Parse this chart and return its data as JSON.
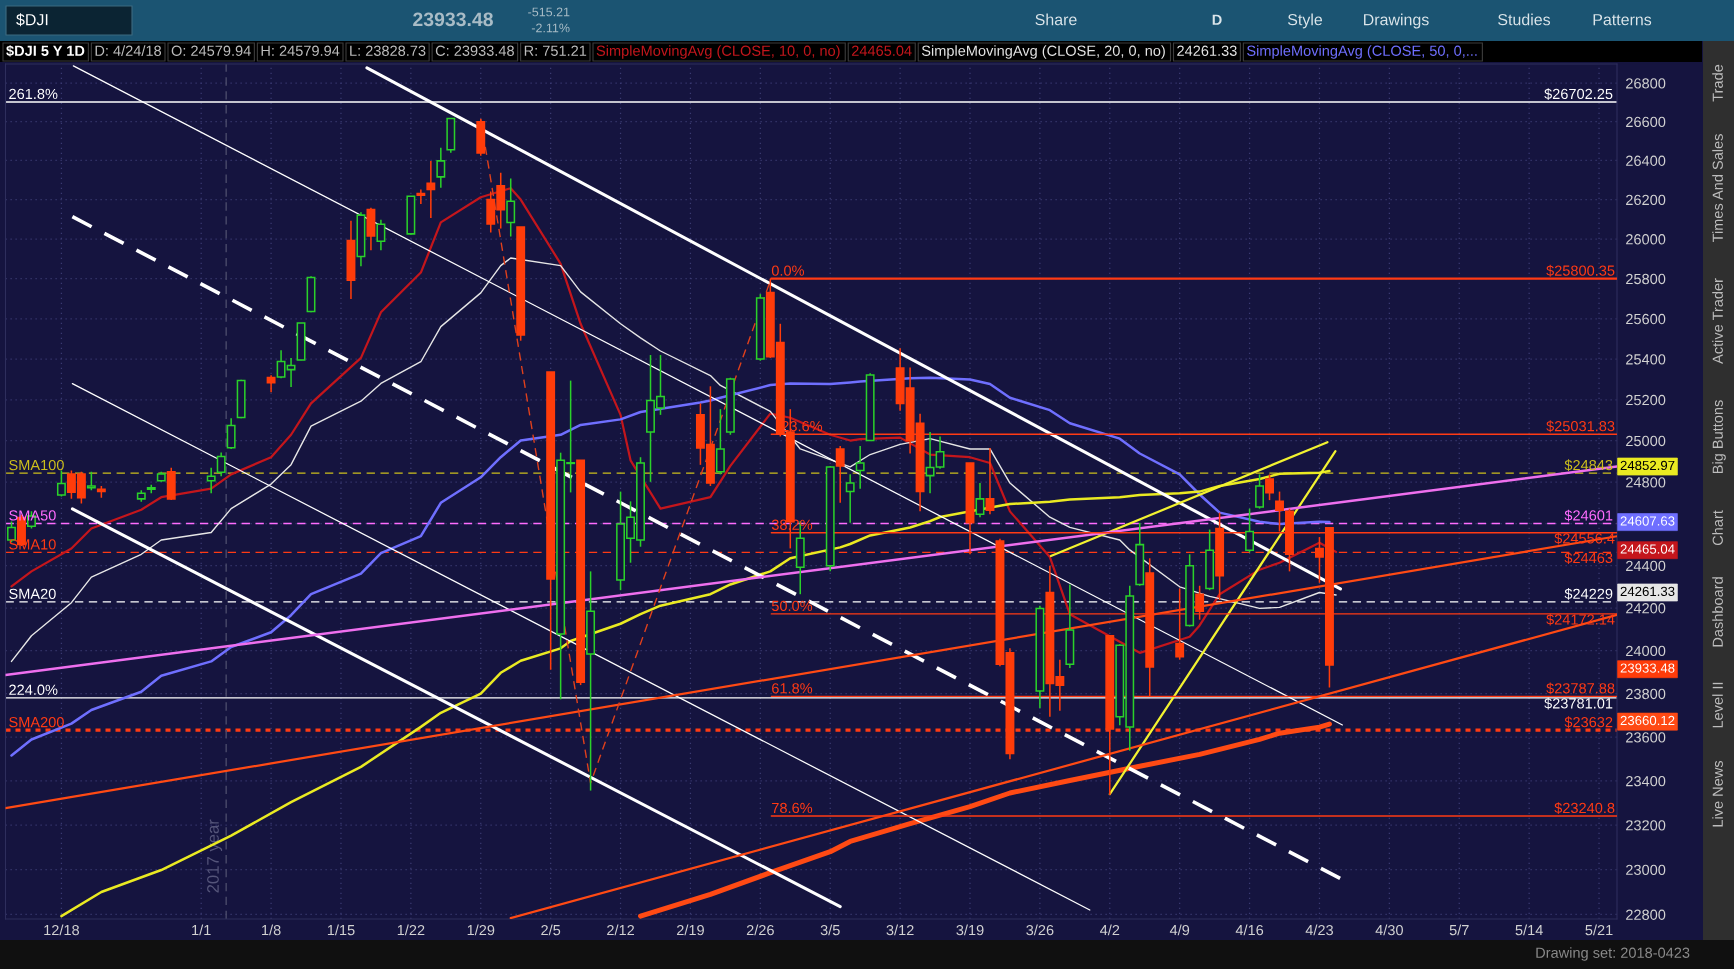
{
  "chart_data": {
    "type": "candlestick",
    "title": "$DJI 5 Y 1D",
    "x": [
      "2017-12-13",
      "2017-12-14",
      "2017-12-15",
      "2017-12-18",
      "2017-12-19",
      "2017-12-20",
      "2017-12-21",
      "2017-12-22",
      "2017-12-26",
      "2017-12-27",
      "2017-12-28",
      "2017-12-29",
      "2018-01-02",
      "2018-01-03",
      "2018-01-04",
      "2018-01-05",
      "2018-01-08",
      "2018-01-09",
      "2018-01-10",
      "2018-01-11",
      "2018-01-12",
      "2018-01-16",
      "2018-01-17",
      "2018-01-18",
      "2018-01-19",
      "2018-01-22",
      "2018-01-23",
      "2018-01-24",
      "2018-01-25",
      "2018-01-26",
      "2018-01-29",
      "2018-01-30",
      "2018-01-31",
      "2018-02-01",
      "2018-02-02",
      "2018-02-05",
      "2018-02-06",
      "2018-02-07",
      "2018-02-08",
      "2018-02-09",
      "2018-02-12",
      "2018-02-13",
      "2018-02-14",
      "2018-02-15",
      "2018-02-16",
      "2018-02-20",
      "2018-02-21",
      "2018-02-22",
      "2018-02-23",
      "2018-02-26",
      "2018-02-27",
      "2018-02-28",
      "2018-03-01",
      "2018-03-02",
      "2018-03-05",
      "2018-03-06",
      "2018-03-07",
      "2018-03-08",
      "2018-03-09",
      "2018-03-12",
      "2018-03-13",
      "2018-03-14",
      "2018-03-15",
      "2018-03-16",
      "2018-03-19",
      "2018-03-20",
      "2018-03-21",
      "2018-03-22",
      "2018-03-23",
      "2018-03-26",
      "2018-03-27",
      "2018-03-28",
      "2018-03-29",
      "2018-04-02",
      "2018-04-03",
      "2018-04-04",
      "2018-04-05",
      "2018-04-06",
      "2018-04-09",
      "2018-04-10",
      "2018-04-11",
      "2018-04-12",
      "2018-04-13",
      "2018-04-16",
      "2018-04-17",
      "2018-04-18",
      "2018-04-19",
      "2018-04-20",
      "2018-04-23",
      "2018-04-24"
    ],
    "ohlc": [
      [
        24522,
        24610,
        24511,
        24582
      ],
      [
        24629,
        24643,
        24493,
        24501
      ],
      [
        24588,
        24659,
        24577,
        24637
      ],
      [
        24738,
        24856,
        24730,
        24793
      ],
      [
        24839,
        24856,
        24719,
        24751
      ],
      [
        24839,
        24850,
        24697,
        24724
      ],
      [
        24773,
        24850,
        24760,
        24781
      ],
      [
        24765,
        24781,
        24724,
        24754
      ],
      [
        24719,
        24760,
        24705,
        24746
      ],
      [
        24765,
        24787,
        24746,
        24773
      ],
      [
        24806,
        24850,
        24801,
        24839
      ],
      [
        24850,
        24869,
        24713,
        24719
      ],
      [
        24806,
        24869,
        24746,
        24828
      ],
      [
        24847,
        24943,
        24828,
        24924
      ],
      [
        24966,
        25110,
        24960,
        25074
      ],
      [
        25113,
        25298,
        25110,
        25295
      ],
      [
        25309,
        25320,
        25237,
        25284
      ],
      [
        25312,
        25444,
        25306,
        25388
      ],
      [
        25348,
        25405,
        25262,
        25368
      ],
      [
        25396,
        25579,
        25394,
        25579
      ],
      [
        25636,
        25812,
        25633,
        25806
      ],
      [
        25992,
        26093,
        25698,
        25792
      ],
      [
        25912,
        26136,
        25863,
        26121
      ],
      [
        26150,
        26159,
        25943,
        26015
      ],
      [
        25989,
        26098,
        25943,
        26075
      ],
      [
        26026,
        26217,
        26021,
        26217
      ],
      [
        26231,
        26252,
        26178,
        26222
      ],
      [
        26284,
        26398,
        26107,
        26252
      ],
      [
        26316,
        26465,
        26261,
        26398
      ],
      [
        26455,
        26616,
        26440,
        26616
      ],
      [
        26600,
        26615,
        26424,
        26439
      ],
      [
        26200,
        26241,
        26033,
        26076
      ],
      [
        26270,
        26337,
        26053,
        26148
      ],
      [
        26084,
        26308,
        26013,
        26192
      ],
      [
        26061,
        26061,
        25491,
        25519
      ],
      [
        25336,
        25336,
        23911,
        24337
      ],
      [
        24078,
        24942,
        23774,
        24905
      ],
      [
        24890,
        25294,
        24750,
        24893
      ],
      [
        24905,
        24905,
        23840,
        23853
      ],
      [
        23985,
        24373,
        23356,
        24185
      ],
      [
        24332,
        24754,
        24284,
        24599
      ],
      [
        24530,
        24707,
        24414,
        24631
      ],
      [
        24522,
        24920,
        24490,
        24892
      ],
      [
        25043,
        25420,
        24801,
        25196
      ],
      [
        25160,
        25420,
        25126,
        25216
      ],
      [
        25126,
        25182,
        24883,
        24965
      ],
      [
        24982,
        25266,
        24781,
        24795
      ],
      [
        24850,
        25154,
        24837,
        24960
      ],
      [
        25043,
        25308,
        25029,
        25302
      ],
      [
        25400,
        25723,
        25392,
        25703
      ],
      [
        25731,
        25800.35,
        25406,
        25412
      ],
      [
        25482,
        25575,
        25021,
        25035
      ],
      [
        25043,
        25154,
        24482,
        24609
      ],
      [
        24392,
        24612,
        24265,
        24530
      ],
      [
        24400,
        24878,
        24373,
        24873
      ],
      [
        24960,
        24974,
        24700,
        24878
      ],
      [
        24754,
        24837,
        24604,
        24795
      ],
      [
        24856,
        24974,
        24768,
        24892
      ],
      [
        25001,
        25330,
        25001,
        25322
      ],
      [
        25356,
        25453,
        25146,
        25182
      ],
      [
        25257,
        25359,
        24938,
        25001
      ],
      [
        25085,
        25132,
        24659,
        24754
      ],
      [
        24831,
        25043,
        24746,
        24870
      ],
      [
        24873,
        25021,
        24864,
        24947
      ],
      [
        24892,
        24892,
        24454,
        24604
      ],
      [
        24645,
        24795,
        24631,
        24719
      ],
      [
        24719,
        24965,
        24645,
        24664
      ],
      [
        24517,
        24528,
        23927,
        23937
      ],
      [
        23990,
        24011,
        23499,
        23525
      ],
      [
        23813,
        24211,
        23734,
        24198
      ],
      [
        24273,
        24400,
        23694,
        23847
      ],
      [
        23879,
        23958,
        23721,
        23839
      ],
      [
        23937,
        24311,
        23919,
        24097
      ],
      [
        24070,
        24070,
        23336,
        23637
      ],
      [
        23694,
        24030,
        23655,
        24025
      ],
      [
        23647,
        24305,
        23538,
        24257
      ],
      [
        24311,
        24604,
        24305,
        24500
      ],
      [
        24365,
        24435,
        23787,
        23924
      ],
      [
        24033,
        24292,
        23958,
        23972
      ],
      [
        24118,
        24454,
        24113,
        24400
      ],
      [
        24265,
        24305,
        24145,
        24185
      ],
      [
        24292,
        24572,
        24284,
        24473
      ],
      [
        24577,
        24653,
        24238,
        24352
      ],
      [
        24473,
        24672,
        24463,
        24563
      ],
      [
        24680,
        24837,
        24672,
        24781
      ],
      [
        24815,
        24837,
        24713,
        24749
      ],
      [
        24707,
        24754,
        24563,
        24664
      ],
      [
        24659,
        24672,
        24373,
        24454
      ],
      [
        24482,
        24536,
        24319,
        24441
      ],
      [
        24579.94,
        24579.94,
        23828.73,
        23933.48
      ]
    ],
    "colors": [
      "#2ad12a",
      "#ff3c0a",
      "#2ad12a",
      "#2ad12a",
      "#ff3c0a",
      "#ff3c0a",
      "#2ad12a",
      "#ff3c0a",
      "#2ad12a",
      "#2ad12a",
      "#2ad12a",
      "#ff3c0a",
      "#2ad12a",
      "#2ad12a",
      "#2ad12a",
      "#2ad12a",
      "#ff3c0a",
      "#2ad12a",
      "#2ad12a",
      "#2ad12a",
      "#2ad12a",
      "#ff3c0a",
      "#2ad12a",
      "#ff3c0a",
      "#2ad12a",
      "#2ad12a",
      "#ff3c0a",
      "#ff3c0a",
      "#2ad12a",
      "#2ad12a",
      "#ff3c0a",
      "#ff3c0a",
      "#ff3c0a",
      "#2ad12a",
      "#ff3c0a",
      "#ff3c0a",
      "#2ad12a",
      "#2ad12a",
      "#ff3c0a",
      "#2ad12a",
      "#2ad12a",
      "#2ad12a",
      "#2ad12a",
      "#2ad12a",
      "#2ad12a",
      "#ff3c0a",
      "#ff3c0a",
      "#2ad12a",
      "#2ad12a",
      "#2ad12a",
      "#ff3c0a",
      "#ff3c0a",
      "#ff3c0a",
      "#2ad12a",
      "#2ad12a",
      "#ff3c0a",
      "#2ad12a",
      "#2ad12a",
      "#2ad12a",
      "#ff3c0a",
      "#ff3c0a",
      "#ff3c0a",
      "#2ad12a",
      "#2ad12a",
      "#ff3c0a",
      "#2ad12a",
      "#ff3c0a",
      "#ff3c0a",
      "#ff3c0a",
      "#2ad12a",
      "#ff3c0a",
      "#ff3c0a",
      "#2ad12a",
      "#ff3c0a",
      "#2ad12a",
      "#2ad12a",
      "#2ad12a",
      "#ff3c0a",
      "#ff3c0a",
      "#2ad12a",
      "#ff3c0a",
      "#2ad12a",
      "#ff3c0a",
      "#2ad12a",
      "#2ad12a",
      "#ff3c0a",
      "#ff3c0a",
      "#ff3c0a",
      "#ff3c0a",
      "#ff3c0a"
    ],
    "series": [
      {
        "type": "line",
        "name": "SimpleMovingAvg (CLOSE, 10, 0, no)",
        "color": "#c4161c",
        "x": [
          "2017-12-13",
          "2017-12-15",
          "2017-12-19",
          "2017-12-21",
          "2017-12-26",
          "2017-12-28",
          "2018-01-02",
          "2018-01-04",
          "2018-01-08",
          "2018-01-10",
          "2018-01-12",
          "2018-01-17",
          "2018-01-19",
          "2018-01-23",
          "2018-01-25",
          "2018-01-29",
          "2018-02-01",
          "2018-02-02",
          "2018-02-06",
          "2018-02-08",
          "2018-02-12",
          "2018-02-13",
          "2018-02-16",
          "2018-02-21",
          "2018-02-23",
          "2018-02-27",
          "2018-03-01",
          "2018-03-05",
          "2018-03-07",
          "2018-03-08",
          "2018-03-12",
          "2018-03-15",
          "2018-03-19",
          "2018-03-21",
          "2018-03-23",
          "2018-03-27",
          "2018-03-29",
          "2018-04-05",
          "2018-04-10",
          "2018-04-11",
          "2018-04-13",
          "2018-04-17",
          "2018-04-19",
          "2018-04-23",
          "2018-04-24T16:00"
        ],
        "values": [
          24302,
          24373,
          24482,
          24577,
          24667,
          24727,
          24768,
          24837,
          24920,
          25029,
          25182,
          25406,
          25632,
          25831,
          26084,
          26212,
          26258,
          26200,
          25875,
          25575,
          25126,
          24905,
          24672,
          24727,
          24878,
          25132,
          25112,
          25029,
          25001,
          25008,
          25015,
          24933,
          24920,
          24892,
          24659,
          24441,
          24171,
          23990,
          24065,
          24118,
          24265,
          24381,
          24414,
          24509,
          24465.04
        ]
      },
      {
        "type": "line",
        "name": "SimpleMovingAvg (CLOSE, 20, 0, no)",
        "color": "#e6e6e6",
        "x": [
          "2017-12-13",
          "2017-12-15",
          "2017-12-19",
          "2017-12-21",
          "2017-12-26",
          "2017-12-28",
          "2018-01-02",
          "2018-01-04",
          "2018-01-08",
          "2018-01-10",
          "2018-01-12",
          "2018-01-17",
          "2018-01-19",
          "2018-01-23",
          "2018-01-25",
          "2018-01-29",
          "2018-01-31",
          "2018-02-01",
          "2018-02-06",
          "2018-02-08",
          "2018-02-12",
          "2018-02-14",
          "2018-02-16",
          "2018-02-21",
          "2018-02-22",
          "2018-02-27",
          "2018-03-02",
          "2018-03-07",
          "2018-03-09",
          "2018-03-12",
          "2018-03-15",
          "2018-03-19",
          "2018-03-21",
          "2018-03-23",
          "2018-03-27",
          "2018-03-29",
          "2018-04-03",
          "2018-04-04",
          "2018-04-09",
          "2018-04-12",
          "2018-04-13",
          "2018-04-17",
          "2018-04-19",
          "2018-04-23",
          "2018-04-24T16:00"
        ],
        "values": [
          23950,
          24070,
          24225,
          24346,
          24454,
          24522,
          24558,
          24672,
          24790,
          24884,
          25071,
          25193,
          25280,
          25387,
          25561,
          25729,
          25866,
          25904,
          25866,
          25734,
          25575,
          25505,
          25440,
          25319,
          25270,
          25143,
          24960,
          24873,
          24933,
          24982,
          25010,
          24960,
          24960,
          24795,
          24631,
          24582,
          24522,
          24475,
          24300,
          24255,
          24244,
          24198,
          24203,
          24273,
          24261.33
        ]
      },
      {
        "type": "line",
        "name": "SimpleMovingAvg (CLOSE, 50, 0,...",
        "color": "#6f6fff",
        "x": [
          "2017-12-13",
          "2017-12-15",
          "2017-12-19",
          "2017-12-21",
          "2017-12-26",
          "2017-12-28",
          "2018-01-02",
          "2018-01-04",
          "2018-01-08",
          "2018-01-10",
          "2018-01-12",
          "2018-01-17",
          "2018-01-19",
          "2018-01-23",
          "2018-01-25",
          "2018-01-29",
          "2018-01-31",
          "2018-02-02",
          "2018-02-06",
          "2018-02-08",
          "2018-02-12",
          "2018-02-14",
          "2018-02-20",
          "2018-02-21",
          "2018-02-22",
          "2018-02-27",
          "2018-03-01",
          "2018-03-05",
          "2018-03-07",
          "2018-03-08",
          "2018-03-13",
          "2018-03-15",
          "2018-03-19",
          "2018-03-21",
          "2018-03-23",
          "2018-03-27",
          "2018-03-29",
          "2018-04-03",
          "2018-04-05",
          "2018-04-09",
          "2018-04-11",
          "2018-04-13",
          "2018-04-17",
          "2018-04-19",
          "2018-04-23",
          "2018-04-24"
        ],
        "values": [
          23516,
          23589,
          23662,
          23725,
          23809,
          23883,
          23950,
          24017,
          24086,
          24166,
          24265,
          24362,
          24460,
          24541,
          24700,
          24823,
          24920,
          25001,
          25029,
          25077,
          25104,
          25140,
          25187,
          25196,
          25210,
          25272,
          25280,
          25277,
          25285,
          25290,
          25305,
          25308,
          25299,
          25277,
          25210,
          25149,
          25085,
          25010,
          24938,
          24837,
          24740,
          24653,
          24609,
          24598,
          24609,
          24607.63
        ]
      },
      {
        "type": "line",
        "color": "#eaea22",
        "x": [
          "2017-12-18",
          "2017-12-22",
          "2017-12-28",
          "2018-01-04",
          "2018-01-10",
          "2018-01-17",
          "2018-01-23",
          "2018-01-25",
          "2018-01-29",
          "2018-01-31",
          "2018-02-02",
          "2018-02-06",
          "2018-02-07",
          "2018-02-12",
          "2018-02-14",
          "2018-02-16",
          "2018-02-21",
          "2018-02-23",
          "2018-02-27",
          "2018-03-01",
          "2018-03-06",
          "2018-03-07",
          "2018-03-09",
          "2018-03-13",
          "2018-03-15",
          "2018-03-16",
          "2018-03-22",
          "2018-03-23",
          "2018-03-27",
          "2018-03-29",
          "2018-04-03",
          "2018-04-05",
          "2018-04-09",
          "2018-04-11",
          "2018-04-13",
          "2018-04-17",
          "2018-04-19",
          "2018-04-23",
          "2018-04-24"
        ],
        "values": [
          22793,
          22900,
          22998,
          23152,
          23304,
          23464,
          23647,
          23712,
          23800,
          23897,
          23953,
          24011,
          24045,
          24126,
          24171,
          24211,
          24265,
          24311,
          24373,
          24435,
          24487,
          24503,
          24544,
          24582,
          24612,
          24632,
          24686,
          24694,
          24705,
          24716,
          24727,
          24738,
          24746,
          24754,
          24781,
          24815,
          24840,
          24845,
          24852.97
        ]
      },
      {
        "type": "line",
        "color": "#ff4a14",
        "x": [
          "2018-02-14",
          "2018-02-21",
          "2018-02-27",
          "2018-03-05",
          "2018-03-07",
          "2018-03-13",
          "2018-03-19",
          "2018-03-23",
          "2018-03-29",
          "2018-04-05",
          "2018-04-11",
          "2018-04-17",
          "2018-04-19",
          "2018-04-23",
          "2018-04-24"
        ],
        "values": [
          22793,
          22889,
          22986,
          23080,
          23126,
          23206,
          23283,
          23345,
          23402,
          23467,
          23521,
          23590,
          23618,
          23646,
          23660.12
        ]
      },
      {
        "type": "line",
        "color": "#ffffff",
        "x": [
          "2018-01-17T14:24",
          "2018-04-25T02:24"
        ],
        "values": [
          26880,
          24290
        ]
      },
      {
        "type": "line",
        "color": "#ffffff",
        "x": [
          "2017-12-19T02:24",
          "2018-03-06"
        ],
        "values": [
          24671,
          22835
        ]
      },
      {
        "type": "line",
        "color": "#ffffff",
        "line_style": "dashed",
        "x": [
          "2017-12-19T02:24",
          "2018-04-25T02:24"
        ],
        "values": [
          26113,
          22960
        ]
      },
      {
        "type": "line",
        "color": "#ffffff",
        "x": [
          "2017-12-19T04:48",
          "2018-04-25T07:12"
        ],
        "values": [
          26890,
          23656
        ]
      },
      {
        "type": "line",
        "color": "#ffffff",
        "x": [
          "2017-12-19T02:24",
          "2018-03-31"
        ],
        "values": [
          25279,
          22820
        ]
      },
      {
        "type": "line",
        "color": "#f2f230",
        "x": [
          "2018-03-27T02:24",
          "2018-04-23T19:12"
        ],
        "values": [
          24446,
          24993
        ]
      },
      {
        "type": "line",
        "color": "#f2f230",
        "x": [
          "2018-04-02",
          "2018-04-24T14:24"
        ],
        "values": [
          23340,
          24949
        ]
      },
      {
        "type": "line",
        "color": "#ee6fee",
        "x": [
          "2017-12-12T09:36",
          "2018-05-22T19:12"
        ],
        "values": [
          23887,
          24875
        ]
      },
      {
        "type": "line",
        "color": "#ff4a14",
        "x": [
          "2017-12-12T09:36",
          "2018-05-22T19:12"
        ],
        "values": [
          23276,
          24540
        ]
      },
      {
        "type": "line",
        "color": "#ff4a14",
        "x": [
          "2018-02-01",
          "2018-05-22T19:12"
        ],
        "values": [
          22784,
          24168
        ]
      },
      {
        "type": "line",
        "color": "#e0401c",
        "line_style": "dashed",
        "x": [
          "2018-01-29",
          "2018-02-09",
          "2018-02-27"
        ],
        "values": [
          26612,
          23390,
          25790
        ]
      },
      {
        "type": "line",
        "color": "#ff3a14",
        "x": [
          "2018-02-27T02:24",
          "2018-05-22T19:12"
        ],
        "values": [
          25800.35,
          25800.35
        ]
      },
      {
        "type": "line",
        "color": "#ff3a14",
        "x": [
          "2018-02-27T02:24",
          "2018-05-22T19:12"
        ],
        "values": [
          25031.83,
          25031.83
        ]
      },
      {
        "type": "line",
        "color": "#ff3a14",
        "x": [
          "2018-02-27T02:24",
          "2018-05-22T19:12"
        ],
        "values": [
          24556.4,
          24556.4
        ]
      },
      {
        "type": "line",
        "color": "#ff3a14",
        "x": [
          "2018-02-27T02:24",
          "2018-05-22T19:12"
        ],
        "values": [
          24172.14,
          24172.14
        ]
      },
      {
        "type": "line",
        "color": "#ff3a14",
        "x": [
          "2018-02-27T02:24",
          "2018-05-22T19:12"
        ],
        "values": [
          23787.88,
          23787.88
        ]
      },
      {
        "type": "line",
        "color": "#ff3a14",
        "x": [
          "2018-02-27T02:24",
          "2018-05-22T19:12"
        ],
        "values": [
          23240.8,
          23240.8
        ]
      }
    ],
    "xlim": [
      "2017-12-12T09:36",
      "2018-05-22T19:12"
    ],
    "ylim": [
      22780,
      26900
    ],
    "log": "y",
    "xticks": [
      {
        "value": "2017-12-18",
        "label": "12/18"
      },
      {
        "value": "2018-01-01",
        "label": "1/1"
      },
      {
        "value": "2018-01-08",
        "label": "1/8"
      },
      {
        "value": "2018-01-15",
        "label": "1/15"
      },
      {
        "value": "2018-01-22",
        "label": "1/22"
      },
      {
        "value": "2018-01-29",
        "label": "1/29"
      },
      {
        "value": "2018-02-05",
        "label": "2/5"
      },
      {
        "value": "2018-02-12",
        "label": "2/12"
      },
      {
        "value": "2018-02-19",
        "label": "2/19"
      },
      {
        "value": "2018-02-26",
        "label": "2/26"
      },
      {
        "value": "2018-03-05",
        "label": "3/5"
      },
      {
        "value": "2018-03-12",
        "label": "3/12"
      },
      {
        "value": "2018-03-19",
        "label": "3/19"
      },
      {
        "value": "2018-03-26",
        "label": "3/26"
      },
      {
        "value": "2018-04-02",
        "label": "4/2"
      },
      {
        "value": "2018-04-09",
        "label": "4/9"
      },
      {
        "value": "2018-04-16",
        "label": "4/16"
      },
      {
        "value": "2018-04-23",
        "label": "4/23"
      },
      {
        "value": "2018-04-30",
        "label": "4/30"
      },
      {
        "value": "2018-05-07",
        "label": "5/7"
      },
      {
        "value": "2018-05-14",
        "label": "5/14"
      },
      {
        "value": "2018-05-21",
        "label": "5/21"
      }
    ],
    "yticks": [
      22800,
      23000,
      23200,
      23400,
      23600,
      23800,
      24000,
      24200,
      24400,
      {
        "value": 24600,
        "label": null
      },
      24800,
      25000,
      25200,
      25400,
      25600,
      25800,
      26000,
      26200,
      26400,
      26600,
      26800
    ],
    "grid": true,
    "legend": "top",
    "ref_lines": [
      {
        "axis": "y",
        "value": 26702.25,
        "label": "$26702.25",
        "color": "#ffffff",
        "line_style": "solid"
      },
      {
        "axis": "y",
        "value": 24843,
        "label": "$24843",
        "color": "#cdbf1c",
        "line_style": "dashed"
      },
      {
        "axis": "y",
        "value": 24601,
        "label": "$24601",
        "color": "#ff6cff",
        "line_style": "dashed"
      },
      {
        "axis": "y",
        "value": 24463,
        "label": "$24463",
        "color": "#ff3a14",
        "line_style": "dashed"
      },
      {
        "axis": "y",
        "value": 24229,
        "label": "$24229",
        "color": "#ffffff",
        "line_style": "dashed"
      },
      {
        "axis": "y",
        "value": 23781.01,
        "label": "$23781.01",
        "color": "#ffffff",
        "line_style": "solid"
      },
      {
        "axis": "y",
        "value": 23632,
        "label": "$23632",
        "color": "#ff3a14",
        "line_style": "dotted"
      },
      {
        "axis": "x",
        "value": "2018-01-03T12:00",
        "label": "2017 year",
        "color": "#4a4a6a",
        "line_style": "dashed"
      }
    ],
    "annotations": [
      "D: 4/24/18",
      "O: 24579.94",
      "H: 24579.94",
      "L: 23828.73",
      "C: 23933.48",
      "R: 751.21",
      "24465.04",
      "24261.33",
      "$DJI",
      "23933.48",
      "-515.21",
      "-2.11%",
      "Share",
      "D",
      "Style",
      "Drawings",
      "Studies",
      "Patterns",
      "Trade",
      "Times And Sales",
      "Active Trader",
      "Big Buttons",
      "Chart",
      "Dashboard",
      "Level II",
      "Live News",
      "Drawing set: 2018-0423",
      "24852.97",
      "24607.63",
      "24465.04",
      "24261.33",
      "23933.48",
      "23660.12",
      {
        "text": "261.8%",
        "x": "2017-12-12T16:48",
        "y": 26702.25
      },
      {
        "text": "SMA100",
        "x": "2017-12-12T16:48",
        "y": 24843
      },
      {
        "text": "SMA50",
        "x": "2017-12-12T16:48",
        "y": 24601
      },
      {
        "text": "SMA10",
        "x": "2017-12-12T16:48",
        "y": 24463
      },
      {
        "text": "SMA20",
        "x": "2017-12-12T16:48",
        "y": 24229
      },
      {
        "text": "224.0%",
        "x": "2017-12-12T16:48",
        "y": 23781.01
      },
      {
        "text": "SMA200",
        "x": "2017-12-12T16:48",
        "y": 23632
      },
      {
        "text": "$25800.35",
        "x": "2018-05-22T14:24",
        "y": 25800.35
      },
      {
        "text": "$25031.83",
        "x": "2018-05-22T14:24",
        "y": 25031.83
      },
      {
        "text": "$24556.4",
        "x": "2018-05-22T14:24",
        "y": 24556.4
      },
      {
        "text": "$24172.14",
        "x": "2018-05-22T14:24",
        "y": 24172.14
      },
      {
        "text": "$23787.88",
        "x": "2018-05-22T14:24",
        "y": 23787.88
      },
      {
        "text": "$23240.8",
        "x": "2018-05-22T14:24",
        "y": 23240.8
      },
      {
        "text": "0.0%",
        "x": "2018-02-27T02:24",
        "y": 25800.35
      },
      {
        "text": "23.6%",
        "x": "2018-02-27T02:24",
        "y": 25031.83
      },
      {
        "text": "38.2%",
        "x": "2018-02-27T02:24",
        "y": 24556.4
      },
      {
        "text": "50.0%",
        "x": "2018-02-27T02:24",
        "y": 24172.14
      },
      {
        "text": "61.8%",
        "x": "2018-02-27T02:24",
        "y": 23787.88
      },
      {
        "text": "78.6%",
        "x": "2018-02-27T02:24",
        "y": 23240.8
      }
    ]
  }
}
